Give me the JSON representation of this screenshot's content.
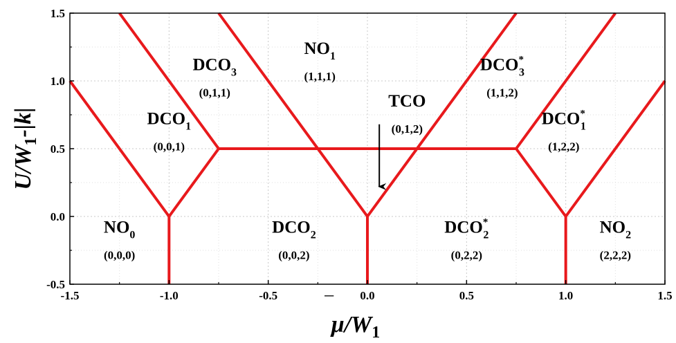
{
  "chart_data": {
    "type": "line",
    "xlim": [
      -1.5,
      1.5
    ],
    "ylim": [
      -0.5,
      1.5
    ],
    "grid": true,
    "x_ticks": [
      "-1.5",
      "-1.0",
      "-0.5",
      "0.0",
      "0.5",
      "1.0",
      "1.5"
    ],
    "y_ticks": [
      "-0.5",
      "0.0",
      "0.5",
      "1.0",
      "1.5"
    ],
    "xlabel": {
      "main": "μ",
      "over": "‾",
      "rest": "/W",
      "sub": "1"
    },
    "ylabel": {
      "a": "U/W",
      "sub": "1",
      "b": "-|k|"
    },
    "line_color": "#e8191c",
    "series": [
      {
        "points": [
          [
            -1.5,
            1.0
          ],
          [
            -1.0,
            0.0
          ]
        ]
      },
      {
        "points": [
          [
            -1.0,
            0.0
          ],
          [
            -0.75,
            0.5
          ]
        ]
      },
      {
        "points": [
          [
            -1.0,
            0.0
          ],
          [
            -1.0,
            -0.5
          ]
        ]
      },
      {
        "points": [
          [
            -1.25,
            1.5
          ],
          [
            -0.75,
            0.5
          ]
        ]
      },
      {
        "points": [
          [
            -0.75,
            0.5
          ],
          [
            0.75,
            0.5
          ]
        ]
      },
      {
        "points": [
          [
            -0.75,
            1.5
          ],
          [
            0.0,
            0.0
          ]
        ]
      },
      {
        "points": [
          [
            0.0,
            0.0
          ],
          [
            0.75,
            1.5
          ]
        ]
      },
      {
        "points": [
          [
            0.0,
            0.0
          ],
          [
            0.0,
            -0.5
          ]
        ]
      },
      {
        "points": [
          [
            0.75,
            0.5
          ],
          [
            1.25,
            1.5
          ]
        ]
      },
      {
        "points": [
          [
            0.75,
            0.5
          ],
          [
            1.0,
            0.0
          ]
        ]
      },
      {
        "points": [
          [
            1.0,
            0.0
          ],
          [
            1.5,
            1.0
          ]
        ]
      },
      {
        "points": [
          [
            1.0,
            0.0
          ],
          [
            1.0,
            -0.5
          ]
        ]
      }
    ],
    "regions": [
      {
        "name": "NO",
        "sub": "0",
        "sup": "",
        "code": "(0,0,0)",
        "x": -1.25,
        "y": -0.12
      },
      {
        "name": "DCO",
        "sub": "1",
        "sup": "",
        "code": "(0,0,1)",
        "x": -1.0,
        "y": 0.68
      },
      {
        "name": "DCO",
        "sub": "3",
        "sup": "",
        "code": "(0,1,1)",
        "x": -0.77,
        "y": 1.08
      },
      {
        "name": "DCO",
        "sub": "2",
        "sup": "",
        "code": "(0,0,2)",
        "x": -0.37,
        "y": -0.12
      },
      {
        "name": "NO",
        "sub": "1",
        "sup": "",
        "code": "(1,1,1)",
        "x": -0.24,
        "y": 1.2
      },
      {
        "name": "TCO",
        "sub": "",
        "sup": "",
        "code": "(0,1,2)",
        "x": 0.2,
        "y": 0.81
      },
      {
        "name": "DCO",
        "sub": "2",
        "sup": "*",
        "code": "(0,2,2)",
        "x": 0.5,
        "y": -0.12
      },
      {
        "name": "DCO",
        "sub": "3",
        "sup": "*",
        "code": "(1,1,2)",
        "x": 0.68,
        "y": 1.08
      },
      {
        "name": "DCO",
        "sub": "1",
        "sup": "*",
        "code": "(1,2,2)",
        "x": 0.99,
        "y": 0.68
      },
      {
        "name": "NO",
        "sub": "2",
        "sup": "",
        "code": "(2,2,2)",
        "x": 1.25,
        "y": -0.12
      }
    ],
    "arrow": {
      "from": [
        0.06,
        0.68
      ],
      "to": [
        0.06,
        0.22
      ]
    }
  }
}
